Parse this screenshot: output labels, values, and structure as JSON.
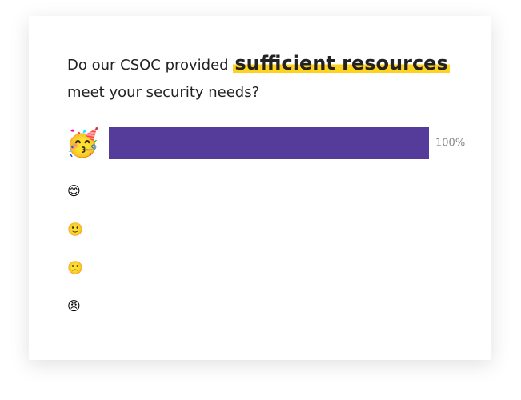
{
  "chart_data": {
    "type": "bar",
    "orientation": "horizontal",
    "title": {
      "before": "Do our CSOC provided",
      "highlight": "sufficient resources",
      "after": "meet your security needs?"
    },
    "categories": [
      "🥳",
      "😊",
      "🙂",
      "🙁",
      "😠"
    ],
    "values": [
      100,
      0,
      0,
      0,
      0
    ],
    "value_labels": [
      "100%",
      null,
      null,
      null,
      null
    ],
    "color": "#553c9a",
    "xlim": [
      0,
      100
    ]
  }
}
